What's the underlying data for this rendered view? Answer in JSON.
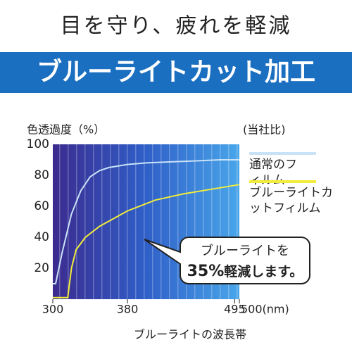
{
  "header": {
    "title": "目を守り、疲れを軽減",
    "banner": "ブルーライトカット加工"
  },
  "chart_data": {
    "type": "line",
    "ylabel": "色透過度（%）",
    "note": "(当社比)",
    "xlabel": "ブルーライトの波長帯",
    "xlim": [
      300,
      500
    ],
    "ylim": [
      0,
      100
    ],
    "xticks": [
      300,
      380,
      495,
      {
        "value": 500,
        "label": "500(nm)"
      }
    ],
    "yticks": [
      20,
      40,
      60,
      80,
      100
    ],
    "series": [
      {
        "name": "通常のフィルム",
        "color": "#c9e2f6",
        "x": [
          300,
          303,
          310,
          320,
          330,
          340,
          350,
          360,
          380,
          400,
          440,
          480,
          500
        ],
        "values": [
          10,
          10,
          30,
          55,
          70,
          79,
          83,
          85,
          87,
          88,
          89,
          90,
          90
        ]
      },
      {
        "name": "ブルーライトカットフィルム",
        "color": "#f2ec3a",
        "x": [
          300,
          316,
          320,
          325,
          335,
          350,
          380,
          410,
          440,
          470,
          500
        ],
        "values": [
          1,
          1,
          20,
          32,
          40,
          47,
          57,
          64,
          68,
          71,
          74
        ]
      }
    ],
    "annotation": {
      "line1": "ブルーライトを",
      "highlight": "35%",
      "rest": "軽減します。"
    }
  }
}
